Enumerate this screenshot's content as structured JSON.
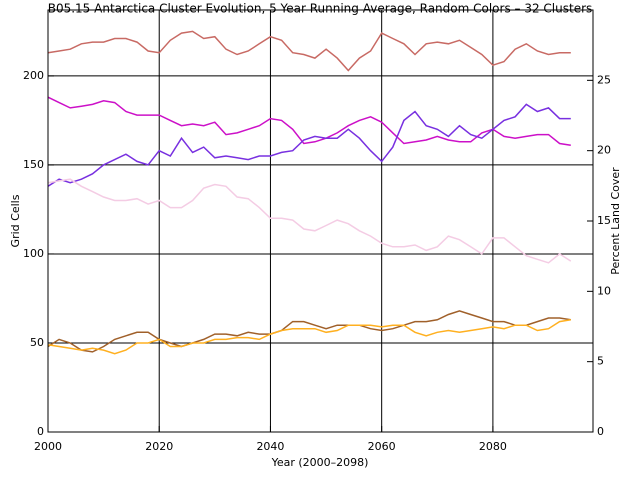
{
  "chart_data": {
    "type": "line",
    "title": "B05.15 Antarctica Cluster Evolution, 5 Year Running Average, Random Colors – 32 Clusters",
    "xlabel": "Year (2000–2098)",
    "ylabel": "Grid Cells",
    "y2label": "Percent Land Cover",
    "xlim": [
      2000,
      2098
    ],
    "xticks": [
      2000,
      2020,
      2040,
      2060,
      2080
    ],
    "ylim": [
      0,
      237
    ],
    "yticks": [
      0,
      50,
      100,
      150,
      200
    ],
    "y2lim": [
      0,
      30
    ],
    "y2ticks": [
      0,
      5,
      10,
      15,
      20,
      25
    ],
    "grid": true,
    "x": [
      2000,
      2002,
      2004,
      2006,
      2008,
      2010,
      2012,
      2014,
      2016,
      2018,
      2020,
      2022,
      2024,
      2026,
      2028,
      2030,
      2032,
      2034,
      2036,
      2038,
      2040,
      2042,
      2044,
      2046,
      2048,
      2050,
      2052,
      2054,
      2056,
      2058,
      2060,
      2062,
      2064,
      2066,
      2068,
      2070,
      2072,
      2074,
      2076,
      2078,
      2080,
      2082,
      2084,
      2086,
      2088,
      2090,
      2092,
      2094
    ],
    "series": [
      {
        "color": "#c86a64",
        "values": [
          213,
          214,
          215,
          218,
          219,
          219,
          221,
          221,
          219,
          214,
          213,
          220,
          224,
          225,
          221,
          222,
          215,
          212,
          214,
          218,
          222,
          220,
          213,
          212,
          210,
          215,
          210,
          203,
          210,
          214,
          224,
          221,
          218,
          212,
          218,
          219,
          218,
          220,
          216,
          212,
          206,
          208,
          215,
          218,
          214,
          212,
          213,
          213
        ]
      },
      {
        "color": "#cc10c8",
        "values": [
          188,
          185,
          182,
          183,
          184,
          186,
          185,
          180,
          178,
          178,
          178,
          175,
          172,
          173,
          172,
          174,
          167,
          168,
          170,
          172,
          176,
          175,
          170,
          162,
          163,
          165,
          168,
          172,
          175,
          177,
          174,
          168,
          162,
          163,
          164,
          166,
          164,
          163,
          163,
          168,
          170,
          166,
          165,
          166,
          167,
          167,
          162,
          161
        ]
      },
      {
        "color": "#7830e0",
        "values": [
          138,
          142,
          140,
          142,
          145,
          150,
          153,
          156,
          152,
          150,
          158,
          155,
          165,
          157,
          160,
          154,
          155,
          154,
          153,
          155,
          155,
          157,
          158,
          164,
          166,
          165,
          165,
          170,
          165,
          158,
          152,
          160,
          175,
          180,
          172,
          170,
          166,
          172,
          167,
          165,
          170,
          175,
          177,
          184,
          180,
          182,
          176,
          176
        ]
      },
      {
        "color": "#f4cce4",
        "values": [
          140,
          141,
          142,
          138,
          135,
          132,
          130,
          130,
          131,
          128,
          130,
          126,
          126,
          130,
          137,
          139,
          138,
          132,
          131,
          126,
          120,
          120,
          119,
          114,
          113,
          116,
          119,
          117,
          113,
          110,
          106,
          104,
          104,
          105,
          102,
          104,
          110,
          108,
          104,
          100,
          109,
          109,
          104,
          99,
          97,
          95,
          100,
          96
        ]
      },
      {
        "color": "#a0602a",
        "values": [
          48,
          52,
          50,
          46,
          45,
          48,
          52,
          54,
          56,
          56,
          52,
          50,
          48,
          50,
          52,
          55,
          55,
          54,
          56,
          55,
          55,
          57,
          62,
          62,
          60,
          58,
          60,
          60,
          60,
          58,
          57,
          58,
          60,
          62,
          62,
          63,
          66,
          68,
          66,
          64,
          62,
          62,
          60,
          60,
          62,
          64,
          64,
          63
        ]
      },
      {
        "color": "#ffb020",
        "values": [
          49,
          48,
          47,
          46,
          47,
          46,
          44,
          46,
          50,
          50,
          52,
          48,
          48,
          50,
          50,
          52,
          52,
          53,
          53,
          52,
          55,
          57,
          58,
          58,
          58,
          56,
          57,
          60,
          60,
          60,
          59,
          60,
          60,
          56,
          54,
          56,
          57,
          56,
          57,
          58,
          59,
          58,
          60,
          60,
          57,
          58,
          62,
          63
        ]
      }
    ]
  }
}
